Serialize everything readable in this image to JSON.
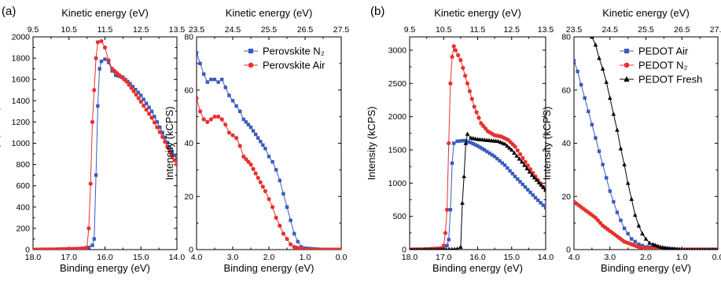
{
  "figure": {
    "panel_labels": [
      "(a)",
      "(b)"
    ]
  },
  "chart_data": [
    {
      "type": "scatter",
      "id": "a1",
      "xlabel": "Binding energy (eV)",
      "top_xlabel": "Kinetic energy (eV)",
      "ylabel": "Intensity (kCPS)",
      "xlim": [
        18.0,
        14.0
      ],
      "ylim": [
        0,
        2000
      ],
      "x_ticks": [
        "18.0",
        "17.0",
        "16.0",
        "15.0",
        "14.0"
      ],
      "top_ticks": [
        "9.5",
        "10.5",
        "11.5",
        "12.5",
        "13.5"
      ],
      "y_ticks": [
        "0",
        "200",
        "400",
        "600",
        "800",
        "1000",
        "1200",
        "1400",
        "1600",
        "1800",
        "2000"
      ],
      "series": [
        {
          "name": "Perovskite N2",
          "color": "#3a5bbd",
          "marker": "square",
          "points": [
            [
              18.0,
              0
            ],
            [
              17.5,
              2
            ],
            [
              17.0,
              5
            ],
            [
              16.6,
              12
            ],
            [
              16.45,
              20
            ],
            [
              16.35,
              40
            ],
            [
              16.3,
              100
            ],
            [
              16.25,
              700
            ],
            [
              16.2,
              1350
            ],
            [
              16.15,
              1700
            ],
            [
              16.1,
              1770
            ],
            [
              16.0,
              1790
            ],
            [
              15.9,
              1760
            ],
            [
              15.8,
              1680
            ],
            [
              15.7,
              1640
            ],
            [
              15.5,
              1620
            ],
            [
              15.3,
              1560
            ],
            [
              15.0,
              1450
            ],
            [
              14.7,
              1300
            ],
            [
              14.4,
              1100
            ],
            [
              14.2,
              960
            ],
            [
              14.0,
              850
            ]
          ]
        },
        {
          "name": "Perovskite Air",
          "color": "#e8312f",
          "marker": "circle",
          "points": [
            [
              18.0,
              0
            ],
            [
              17.5,
              2
            ],
            [
              17.0,
              5
            ],
            [
              16.6,
              10
            ],
            [
              16.5,
              20
            ],
            [
              16.45,
              200
            ],
            [
              16.4,
              620
            ],
            [
              16.35,
              1200
            ],
            [
              16.3,
              1500
            ],
            [
              16.25,
              1800
            ],
            [
              16.2,
              1950
            ],
            [
              16.1,
              1960
            ],
            [
              16.0,
              1900
            ],
            [
              15.9,
              1780
            ],
            [
              15.8,
              1700
            ],
            [
              15.6,
              1640
            ],
            [
              15.4,
              1580
            ],
            [
              15.2,
              1490
            ],
            [
              15.0,
              1390
            ],
            [
              14.7,
              1240
            ],
            [
              14.4,
              1060
            ],
            [
              14.2,
              920
            ],
            [
              14.0,
              800
            ]
          ]
        }
      ]
    },
    {
      "type": "scatter",
      "id": "a2",
      "xlabel": "Binding energy (eV)",
      "top_xlabel": "Kinetic energy (eV)",
      "ylabel": "Intensity (kCPS)",
      "xlim": [
        4.0,
        0.0
      ],
      "ylim": [
        0,
        80
      ],
      "x_ticks": [
        "4.0",
        "3.0",
        "2.0",
        "1.0",
        "0.0"
      ],
      "top_ticks": [
        "23.5",
        "24.5",
        "25.5",
        "26.5",
        "27.5"
      ],
      "y_ticks": [
        "0",
        "20",
        "40",
        "60",
        "80"
      ],
      "legend": [
        "Perovskite N₂",
        "Perovskite Air"
      ],
      "series": [
        {
          "name": "Perovskite N2",
          "color": "#3a5bbd",
          "marker": "square",
          "points": [
            [
              4.0,
              74
            ],
            [
              3.9,
              70
            ],
            [
              3.8,
              66
            ],
            [
              3.7,
              63
            ],
            [
              3.6,
              64
            ],
            [
              3.5,
              64
            ],
            [
              3.4,
              63
            ],
            [
              3.3,
              64
            ],
            [
              3.2,
              61
            ],
            [
              3.1,
              58
            ],
            [
              3.0,
              56
            ],
            [
              2.9,
              54
            ],
            [
              2.8,
              52
            ],
            [
              2.7,
              49
            ],
            [
              2.5,
              46
            ],
            [
              2.3,
              42
            ],
            [
              2.1,
              38
            ],
            [
              2.0,
              35
            ],
            [
              1.9,
              33
            ],
            [
              1.8,
              30
            ],
            [
              1.7,
              26
            ],
            [
              1.6,
              21
            ],
            [
              1.5,
              16
            ],
            [
              1.4,
              11
            ],
            [
              1.3,
              6
            ],
            [
              1.2,
              3
            ],
            [
              1.1,
              1
            ],
            [
              1.0,
              0.5
            ],
            [
              0.5,
              0
            ],
            [
              0.0,
              0
            ]
          ]
        },
        {
          "name": "Perovskite Air",
          "color": "#e8312f",
          "marker": "circle",
          "points": [
            [
              4.0,
              57
            ],
            [
              3.9,
              52
            ],
            [
              3.8,
              49
            ],
            [
              3.7,
              48
            ],
            [
              3.6,
              49
            ],
            [
              3.5,
              50
            ],
            [
              3.4,
              50
            ],
            [
              3.3,
              49
            ],
            [
              3.2,
              47
            ],
            [
              3.1,
              44
            ],
            [
              3.0,
              43
            ],
            [
              2.9,
              42
            ],
            [
              2.8,
              39
            ],
            [
              2.7,
              35
            ],
            [
              2.5,
              32
            ],
            [
              2.3,
              27
            ],
            [
              2.1,
              22
            ],
            [
              2.0,
              19
            ],
            [
              1.9,
              16
            ],
            [
              1.8,
              12
            ],
            [
              1.7,
              9
            ],
            [
              1.6,
              6
            ],
            [
              1.5,
              4
            ],
            [
              1.4,
              2
            ],
            [
              1.3,
              1
            ],
            [
              1.0,
              0
            ],
            [
              0.5,
              0
            ],
            [
              0.0,
              0
            ]
          ]
        }
      ]
    },
    {
      "type": "scatter",
      "id": "b1",
      "xlabel": "Binding energy (eV)",
      "top_xlabel": "Kinetic energy (eV)",
      "ylabel": "Intensity (kCPS)",
      "xlim": [
        18.0,
        14.0
      ],
      "ylim": [
        0,
        3200
      ],
      "x_ticks": [
        "18.0",
        "17.0",
        "16.0",
        "15.0",
        "14.0"
      ],
      "top_ticks": [
        "9.5",
        "10.5",
        "11.5",
        "12.5",
        "13.5"
      ],
      "y_ticks": [
        "0",
        "500",
        "1000",
        "1500",
        "2000",
        "2500",
        "3000"
      ],
      "series": [
        {
          "name": "PEDOT Air",
          "color": "#3a5bbd",
          "marker": "square",
          "points": [
            [
              18.0,
              0
            ],
            [
              17.5,
              5
            ],
            [
              17.0,
              20
            ],
            [
              16.9,
              60
            ],
            [
              16.85,
              150
            ],
            [
              16.8,
              600
            ],
            [
              16.75,
              1300
            ],
            [
              16.7,
              1600
            ],
            [
              16.6,
              1630
            ],
            [
              16.4,
              1640
            ],
            [
              16.2,
              1610
            ],
            [
              16.0,
              1560
            ],
            [
              15.8,
              1500
            ],
            [
              15.5,
              1400
            ],
            [
              15.2,
              1270
            ],
            [
              14.9,
              1100
            ],
            [
              14.6,
              940
            ],
            [
              14.3,
              780
            ],
            [
              14.0,
              630
            ]
          ]
        },
        {
          "name": "PEDOT N2",
          "color": "#e8312f",
          "marker": "circle",
          "points": [
            [
              18.0,
              0
            ],
            [
              17.5,
              5
            ],
            [
              17.1,
              20
            ],
            [
              17.0,
              60
            ],
            [
              16.95,
              250
            ],
            [
              16.9,
              600
            ],
            [
              16.85,
              1600
            ],
            [
              16.8,
              2500
            ],
            [
              16.75,
              2900
            ],
            [
              16.7,
              3060
            ],
            [
              16.65,
              3000
            ],
            [
              16.5,
              2850
            ],
            [
              16.3,
              2500
            ],
            [
              16.1,
              2150
            ],
            [
              15.9,
              1900
            ],
            [
              15.7,
              1780
            ],
            [
              15.5,
              1720
            ],
            [
              15.3,
              1700
            ],
            [
              15.1,
              1650
            ],
            [
              14.9,
              1550
            ],
            [
              14.6,
              1320
            ],
            [
              14.3,
              1100
            ],
            [
              14.0,
              890
            ]
          ]
        },
        {
          "name": "PEDOT Fresh",
          "color": "#000000",
          "marker": "triangle",
          "points": [
            [
              18.0,
              0
            ],
            [
              17.0,
              0
            ],
            [
              16.6,
              10
            ],
            [
              16.5,
              40
            ],
            [
              16.45,
              700
            ],
            [
              16.4,
              1100
            ],
            [
              16.35,
              1600
            ],
            [
              16.3,
              1740
            ],
            [
              16.2,
              1680
            ],
            [
              16.0,
              1660
            ],
            [
              15.8,
              1650
            ],
            [
              15.6,
              1640
            ],
            [
              15.4,
              1630
            ],
            [
              15.2,
              1590
            ],
            [
              15.0,
              1500
            ],
            [
              14.7,
              1320
            ],
            [
              14.4,
              1120
            ],
            [
              14.2,
              1010
            ],
            [
              14.0,
              900
            ]
          ]
        }
      ]
    },
    {
      "type": "scatter",
      "id": "b2",
      "xlabel": "Binding energy (eV)",
      "top_xlabel": "Kinetic energy (eV)",
      "ylabel": "Intensity (kCPS)",
      "xlim": [
        4.0,
        0.0
      ],
      "ylim": [
        0,
        80
      ],
      "x_ticks": [
        "4.0",
        "3.0",
        "2.0",
        "1.0",
        "0.0"
      ],
      "top_ticks": [
        "23.5",
        "24.5",
        "25.5",
        "26.5",
        "27.5"
      ],
      "y_ticks": [
        "0",
        "20",
        "40",
        "60",
        "80"
      ],
      "legend": [
        "PEDOT Air",
        "PEDOT N₂",
        "PEDOT Fresh"
      ],
      "series": [
        {
          "name": "PEDOT Air",
          "color": "#3a5bbd",
          "marker": "square",
          "points": [
            [
              4.0,
              71
            ],
            [
              3.9,
              67
            ],
            [
              3.8,
              62
            ],
            [
              3.7,
              57
            ],
            [
              3.6,
              52
            ],
            [
              3.5,
              47
            ],
            [
              3.4,
              42
            ],
            [
              3.3,
              37
            ],
            [
              3.2,
              32
            ],
            [
              3.1,
              27
            ],
            [
              3.0,
              22
            ],
            [
              2.9,
              18
            ],
            [
              2.8,
              14
            ],
            [
              2.7,
              11
            ],
            [
              2.6,
              8
            ],
            [
              2.5,
              6
            ],
            [
              2.4,
              4
            ],
            [
              2.3,
              3
            ],
            [
              2.2,
              2
            ],
            [
              2.1,
              1.5
            ],
            [
              2.0,
              1
            ],
            [
              1.5,
              0.5
            ],
            [
              1.0,
              0
            ],
            [
              0.0,
              0
            ]
          ]
        },
        {
          "name": "PEDOT N2",
          "color": "#e8312f",
          "marker": "circle",
          "points": [
            [
              4.0,
              18
            ],
            [
              3.8,
              16
            ],
            [
              3.6,
              14
            ],
            [
              3.4,
              12
            ],
            [
              3.2,
              9
            ],
            [
              3.0,
              7
            ],
            [
              2.8,
              5
            ],
            [
              2.6,
              3
            ],
            [
              2.4,
              2
            ],
            [
              2.2,
              1
            ],
            [
              2.0,
              0.5
            ],
            [
              1.5,
              0
            ],
            [
              1.0,
              0
            ],
            [
              0.0,
              0
            ]
          ]
        },
        {
          "name": "PEDOT Fresh",
          "color": "#000000",
          "marker": "triangle",
          "points": [
            [
              3.5,
              80
            ],
            [
              3.4,
              77
            ],
            [
              3.3,
              72
            ],
            [
              3.2,
              68
            ],
            [
              3.1,
              63
            ],
            [
              3.0,
              57
            ],
            [
              2.9,
              51
            ],
            [
              2.8,
              45
            ],
            [
              2.7,
              38
            ],
            [
              2.6,
              32
            ],
            [
              2.5,
              25
            ],
            [
              2.4,
              19
            ],
            [
              2.3,
              13
            ],
            [
              2.2,
              9
            ],
            [
              2.1,
              6
            ],
            [
              2.0,
              4
            ],
            [
              1.9,
              2.5
            ],
            [
              1.8,
              2
            ],
            [
              1.6,
              1
            ],
            [
              1.4,
              0.5
            ],
            [
              1.0,
              0
            ],
            [
              0.0,
              0
            ]
          ]
        }
      ]
    }
  ]
}
